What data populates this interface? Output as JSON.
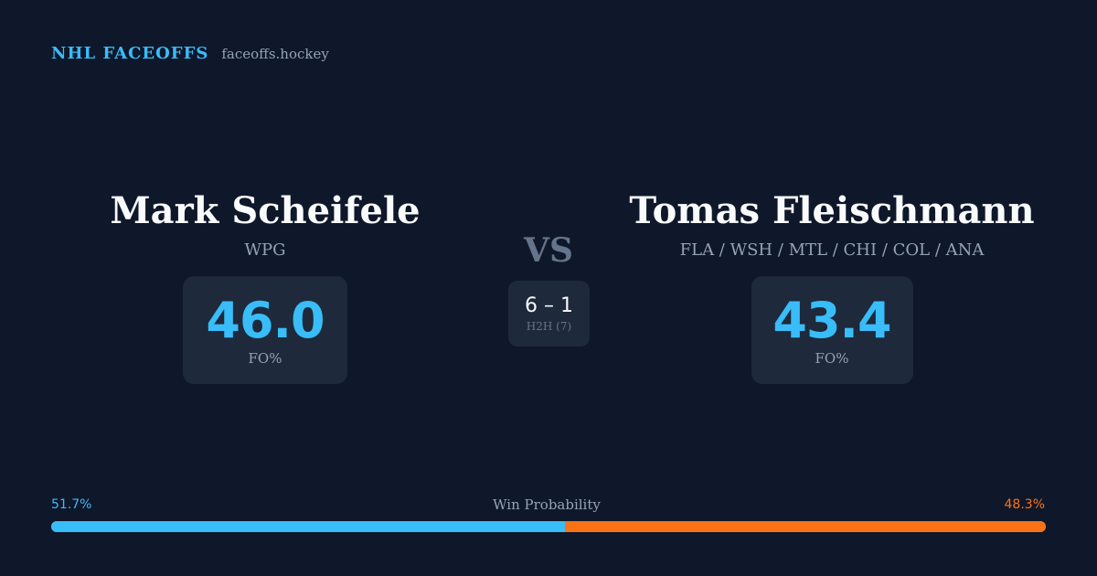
{
  "brand": {
    "title": "NHL FACEOFFS",
    "domain": "faceoffs.hockey"
  },
  "player_left": {
    "name": "Mark Scheifele",
    "team": "WPG",
    "fo_pct": "46.0",
    "fo_label": "FO%"
  },
  "player_right": {
    "name": "Tomas Fleischmann",
    "team": "FLA / WSH / MTL / CHI / COL / ANA",
    "fo_pct": "43.4",
    "fo_label": "FO%"
  },
  "versus": {
    "label": "VS",
    "h2h_score": "6 – 1",
    "h2h_label": "H2H (7)"
  },
  "win_probability": {
    "title": "Win Probability",
    "left_label": "51.7%",
    "right_label": "48.3%",
    "left_fraction": 0.517,
    "right_fraction": 0.483
  },
  "colors": {
    "background": "#0f172a",
    "card": "#1e293b",
    "accent_left": "#38bdf8",
    "accent_right": "#f97316",
    "muted": "#94a3b8"
  }
}
